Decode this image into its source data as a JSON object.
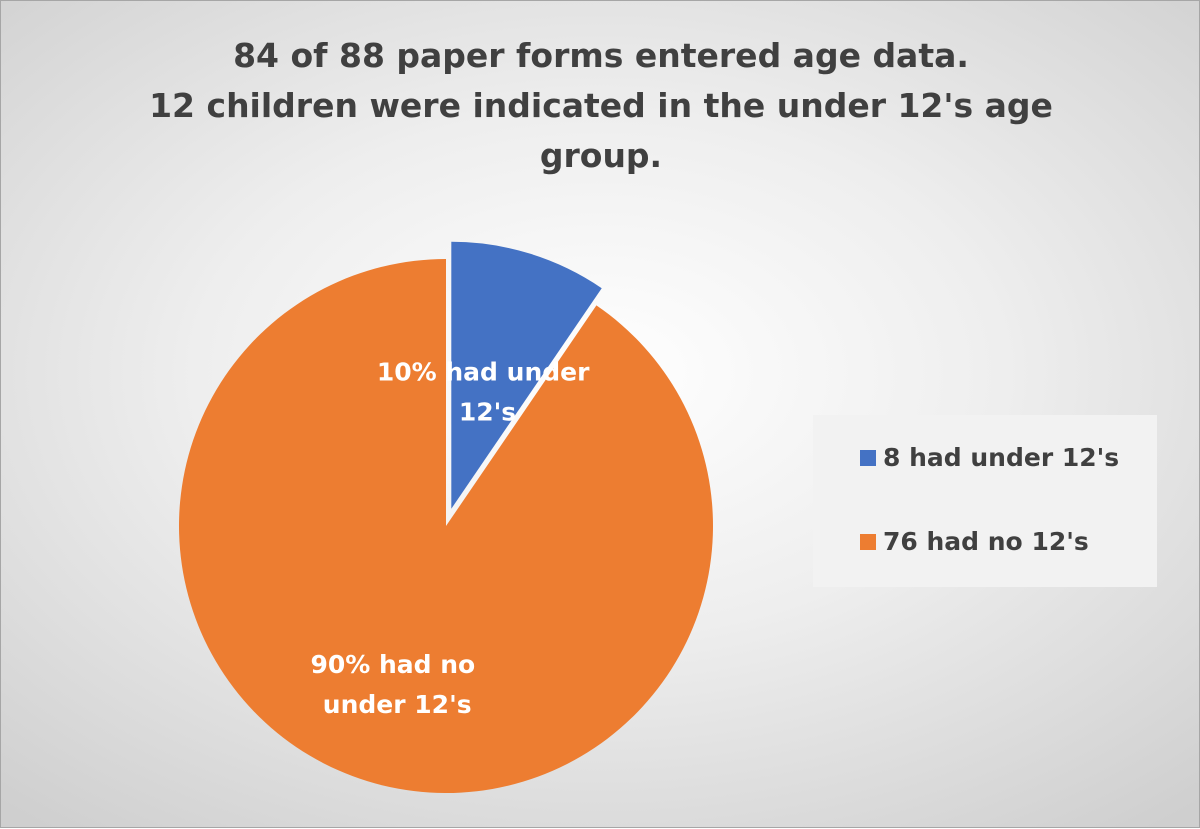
{
  "chart_data": {
    "type": "pie",
    "title_lines": [
      "84 of 88 paper forms entered age data.",
      "12 children were indicated in the under 12's age",
      "group."
    ],
    "slices": [
      {
        "name": "8 had under 12's",
        "value": 8,
        "label_lines": [
          "10% had under",
          "12's"
        ],
        "color": "#4472c4",
        "exploded": true
      },
      {
        "name": "76 had no 12's",
        "value": 76,
        "label_lines": [
          "90% had no",
          "under 12's"
        ],
        "color": "#ed7d31",
        "exploded": false
      }
    ],
    "legend_position": "right"
  }
}
